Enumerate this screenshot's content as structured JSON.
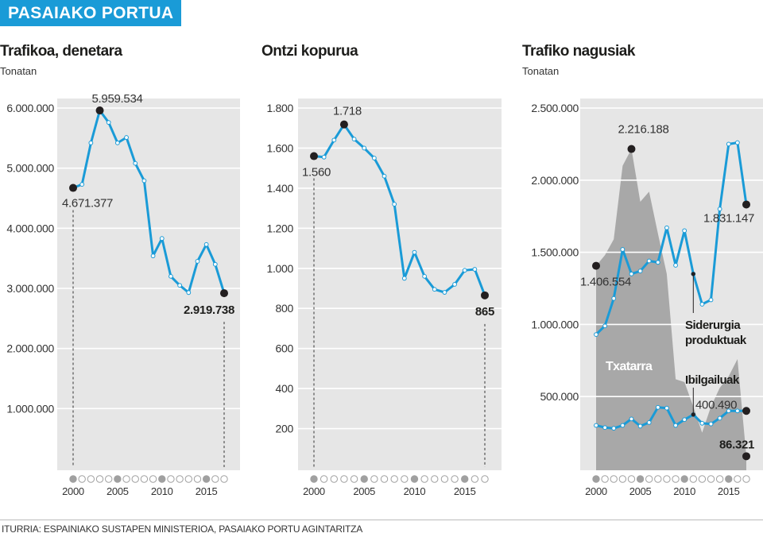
{
  "header": {
    "banner": "PASAIAKO PORTUA"
  },
  "source": "ITURRIA: ESPAINIAKO SUSTAPEN MINISTERIOA, PASAIAKO PORTU AGINTARITZA",
  "colors": {
    "banner": "#1a9bd7",
    "line": "#1a9bd7",
    "plot_bg": "#e6e6e6",
    "area": "#a8a8a8",
    "marker": "#231f20",
    "year_dot_filled": "#a0a0a0"
  },
  "chart_data": [
    {
      "type": "line",
      "title": "Trafikoa, denetara",
      "subtitle": "Tonatan",
      "x": [
        2000,
        2001,
        2002,
        2003,
        2004,
        2005,
        2006,
        2007,
        2008,
        2009,
        2010,
        2011,
        2012,
        2013,
        2014,
        2015,
        2016,
        2017
      ],
      "series": [
        {
          "values": [
            4671377,
            4730000,
            5420000,
            5959534,
            5760000,
            5420000,
            5510000,
            5080000,
            4790000,
            3540000,
            3830000,
            3200000,
            3050000,
            2930000,
            3450000,
            3730000,
            3400000,
            2919738
          ]
        }
      ],
      "ylim": [
        0,
        6000000
      ],
      "yticks": [
        1000000,
        2000000,
        3000000,
        4000000,
        5000000,
        6000000
      ],
      "ytick_labels": [
        "1.000.000",
        "2.000.000",
        "3.000.000",
        "4.000.000",
        "5.000.000",
        "6.000.000"
      ],
      "xtick_labels": [
        "2000",
        "2005",
        "2010",
        "2015"
      ],
      "annotations": [
        {
          "year": 2000,
          "value": 4671377,
          "label": "4.671.377",
          "bold": false
        },
        {
          "year": 2003,
          "value": 5959534,
          "label": "5.959.534",
          "bold": false
        },
        {
          "year": 2017,
          "value": 2919738,
          "label": "2.919.738",
          "bold": true
        }
      ],
      "grid": true
    },
    {
      "type": "line",
      "title": "Ontzi kopurua",
      "subtitle": "",
      "x": [
        2000,
        2001,
        2002,
        2003,
        2004,
        2005,
        2006,
        2007,
        2008,
        2009,
        2010,
        2011,
        2012,
        2013,
        2014,
        2015,
        2016,
        2017
      ],
      "series": [
        {
          "values": [
            1560,
            1555,
            1640,
            1718,
            1645,
            1600,
            1550,
            1460,
            1320,
            950,
            1080,
            960,
            895,
            880,
            920,
            990,
            995,
            865
          ]
        }
      ],
      "ylim": [
        0,
        1800
      ],
      "yticks": [
        200,
        400,
        600,
        800,
        1000,
        1200,
        1400,
        1600,
        1800
      ],
      "ytick_labels": [
        "200",
        "400",
        "600",
        "800",
        "1.000",
        "1.200",
        "1.400",
        "1.600",
        "1.800"
      ],
      "xtick_labels": [
        "2000",
        "2005",
        "2010",
        "2015"
      ],
      "annotations": [
        {
          "year": 2000,
          "value": 1560,
          "label": "1.560",
          "bold": false
        },
        {
          "year": 2003,
          "value": 1718,
          "label": "1.718",
          "bold": false
        },
        {
          "year": 2017,
          "value": 865,
          "label": "865",
          "bold": true
        }
      ],
      "grid": true
    },
    {
      "type": "area",
      "title": "Trafiko nagusiak",
      "subtitle": "Tonatan",
      "x": [
        2000,
        2001,
        2002,
        2003,
        2004,
        2005,
        2006,
        2007,
        2008,
        2009,
        2010,
        2011,
        2012,
        2013,
        2014,
        2015,
        2016,
        2017
      ],
      "series": [
        {
          "name": "Txatarra",
          "kind": "area",
          "values": [
            1406554,
            1480000,
            1590000,
            2100000,
            2216188,
            1850000,
            1920000,
            1630000,
            1350000,
            620000,
            600000,
            430000,
            250000,
            430000,
            560000,
            640000,
            760000,
            86321
          ]
        },
        {
          "name": "Siderurgia produktuak",
          "kind": "line",
          "values": [
            930000,
            990000,
            1180000,
            1520000,
            1350000,
            1370000,
            1440000,
            1430000,
            1670000,
            1410000,
            1650000,
            1350000,
            1140000,
            1170000,
            1800000,
            2250000,
            2260000,
            1831147
          ]
        },
        {
          "name": "Ibilgailuak",
          "kind": "line",
          "values": [
            300000,
            285000,
            280000,
            300000,
            345000,
            295000,
            320000,
            425000,
            420000,
            300000,
            340000,
            375000,
            315000,
            310000,
            350000,
            400490,
            400490,
            400490
          ]
        }
      ],
      "ylim": [
        0,
        2500000
      ],
      "yticks": [
        500000,
        1000000,
        1500000,
        2000000,
        2500000
      ],
      "ytick_labels": [
        "500.000",
        "1.000.000",
        "1.500.000",
        "2.000.000",
        "2.500.000"
      ],
      "xtick_labels": [
        "2000",
        "2005",
        "2010",
        "2015"
      ],
      "annotations": [
        {
          "year": 2000,
          "value": 1406554,
          "label": "1.406.554",
          "bold": false
        },
        {
          "year": 2004,
          "value": 2216188,
          "label": "2.216.188",
          "bold": false
        },
        {
          "year": 2017,
          "value": 1831147,
          "label": "1.831.147",
          "bold": false
        },
        {
          "year": 2017,
          "value": 400490,
          "label": "400.490",
          "bold": false
        },
        {
          "year": 2017,
          "value": 86321,
          "label": "86.321",
          "bold": true
        }
      ],
      "series_labels": [
        {
          "text": "Txatarra",
          "series": "Txatarra"
        },
        {
          "text": "Siderurgia",
          "text2": "produktuak",
          "series": "Siderurgia produktuak"
        },
        {
          "text": "Ibilgailuak",
          "series": "Ibilgailuak"
        }
      ],
      "grid": true
    }
  ]
}
